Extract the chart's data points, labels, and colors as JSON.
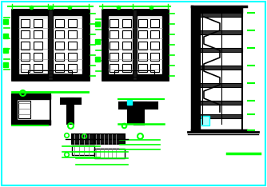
{
  "bg_color": "#ffffff",
  "border_color": "#00ffff",
  "line_color": "#000000",
  "green_color": "#00ff00",
  "cyan_color": "#00ffff",
  "thick_line": 2.5,
  "medium_line": 1.5,
  "thin_line": 0.8
}
